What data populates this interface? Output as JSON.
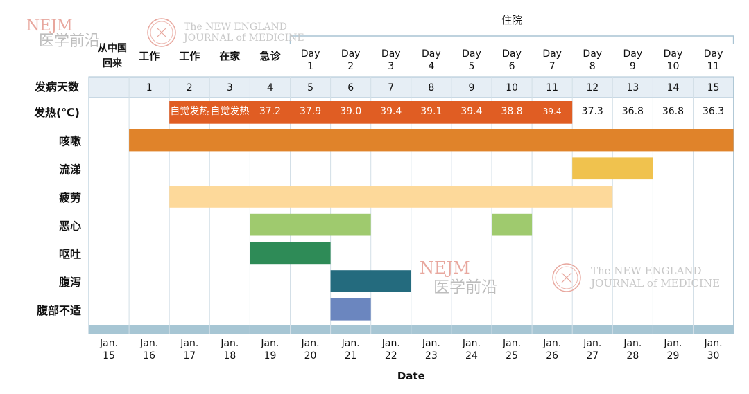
{
  "chart_data": {
    "type": "gantt",
    "hospital_label": "住院",
    "day_number_label": "发病天数",
    "dates": [
      "Jan. 15",
      "Jan. 16",
      "Jan. 17",
      "Jan. 18",
      "Jan. 19",
      "Jan. 20",
      "Jan. 21",
      "Jan. 22",
      "Jan. 23",
      "Jan. 24",
      "Jan. 25",
      "Jan. 26",
      "Jan. 27",
      "Jan. 28",
      "Jan. 29",
      "Jan. 30"
    ],
    "events": [
      "从中国回来",
      "工作",
      "工作",
      "在家",
      "急诊",
      "Day 1",
      "Day 2",
      "Day 3",
      "Day 4",
      "Day 5",
      "Day 6",
      "Day 7",
      "Day 8",
      "Day 9",
      "Day 10",
      "Day 11"
    ],
    "illness_days": [
      "",
      "1",
      "2",
      "3",
      "4",
      "5",
      "6",
      "7",
      "8",
      "9",
      "10",
      "11",
      "12",
      "13",
      "14",
      "15"
    ],
    "fever": {
      "label": "发热(℃)",
      "values": [
        "",
        "",
        "自觉发热",
        "自觉发热",
        "37.2",
        "37.9",
        "39.0",
        "39.4",
        "39.1",
        "39.4",
        "38.8",
        "39.4",
        "37.3",
        "36.8",
        "36.8",
        "36.3"
      ],
      "highlight_start": 2,
      "highlight_end": 11,
      "color": "#e05d23"
    },
    "symptoms": [
      {
        "name": "咳嗽",
        "segments": [
          [
            1,
            15
          ]
        ],
        "color": "#e0832a"
      },
      {
        "name": "流涕",
        "segments": [
          [
            12,
            13
          ]
        ],
        "color": "#f0c24e"
      },
      {
        "name": "疲劳",
        "segments": [
          [
            2,
            12
          ]
        ],
        "color": "#fdd99a"
      },
      {
        "name": "恶心",
        "segments": [
          [
            4,
            6
          ],
          [
            10,
            10
          ]
        ],
        "color": "#9fca6e"
      },
      {
        "name": "呕吐",
        "segments": [
          [
            4,
            5
          ]
        ],
        "color": "#2e8b57"
      },
      {
        "name": "腹泻",
        "segments": [
          [
            6,
            7
          ]
        ],
        "color": "#246b7e"
      },
      {
        "name": "腹部不适",
        "segments": [
          [
            6,
            6
          ]
        ],
        "color": "#6b86bf"
      }
    ],
    "xlabel": "Date"
  },
  "watermarks": {
    "nejm": "NEJM",
    "chinese": "医学前沿",
    "journal_line1": "The NEW ENGLAND",
    "journal_line2": "JOURNAL of MEDICINE"
  }
}
